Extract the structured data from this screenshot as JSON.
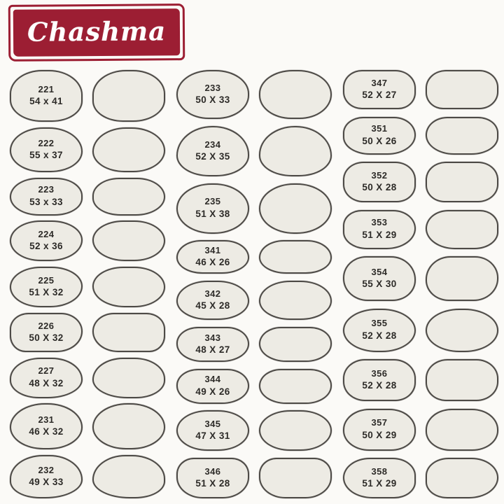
{
  "brand": {
    "name": "Chashma",
    "box_color": "#9c1e33",
    "text_color": "#ffffff"
  },
  "palette": {
    "background": "#fbfaf7",
    "lens_fill": "#edebe4",
    "lens_outline": "#4d4a46",
    "label_color": "#2d2b28",
    "brand_red": "#9c1e33",
    "brand_text": "#ffffff"
  },
  "columns": [
    {
      "rows": [
        {
          "model": "221",
          "size": "54 x 41",
          "shape": "sq"
        },
        {
          "model": "222",
          "size": "55 x 37",
          "shape": "wr"
        },
        {
          "model": "223",
          "size": "53 x 33",
          "shape": "wf"
        },
        {
          "model": "224",
          "size": "52 x 36",
          "shape": "wf2"
        },
        {
          "model": "225",
          "size": "51 X 32",
          "shape": "wf2"
        },
        {
          "model": "226",
          "size": "50 X 32",
          "shape": "trap"
        },
        {
          "model": "227",
          "size": "48 X 32",
          "shape": "semi"
        },
        {
          "model": "231",
          "size": "46 X 32",
          "shape": "round"
        },
        {
          "model": "232",
          "size": "49 X 33",
          "shape": "avi"
        }
      ]
    },
    {
      "rows": [
        {
          "model": "233",
          "size": "50 X 33",
          "shape": "round2"
        },
        {
          "model": "234",
          "size": "52 X 35",
          "shape": "tri"
        },
        {
          "model": "235",
          "size": "51 X 38",
          "shape": "bigoval"
        },
        {
          "model": "341",
          "size": "46 X 26",
          "shape": "sport1"
        },
        {
          "model": "342",
          "size": "45 X 28",
          "shape": "ovalw"
        },
        {
          "model": "343",
          "size": "48 X 27",
          "shape": "sport2"
        },
        {
          "model": "344",
          "size": "49 X 26",
          "shape": "sport2"
        },
        {
          "model": "345",
          "size": "47 X 31",
          "shape": "ovalw2"
        },
        {
          "model": "346",
          "size": "51 X 28",
          "shape": "sptrap"
        }
      ]
    },
    {
      "rows": [
        {
          "model": "347",
          "size": "52 X 27",
          "shape": "rrect"
        },
        {
          "model": "351",
          "size": "50 X 26",
          "shape": "trap2"
        },
        {
          "model": "352",
          "size": "50 X 28",
          "shape": "rrect2"
        },
        {
          "model": "353",
          "size": "51 X 29",
          "shape": "trap3"
        },
        {
          "model": "354",
          "size": "55 X 30",
          "shape": "rrectb"
        },
        {
          "model": "355",
          "size": "52 X 28",
          "shape": "oval"
        },
        {
          "model": "356",
          "size": "52 X 28",
          "shape": "rrect3"
        },
        {
          "model": "357",
          "size": "50 X 29",
          "shape": "rrectr"
        },
        {
          "model": "358",
          "size": "51 X 29",
          "shape": "sporty"
        }
      ]
    }
  ]
}
